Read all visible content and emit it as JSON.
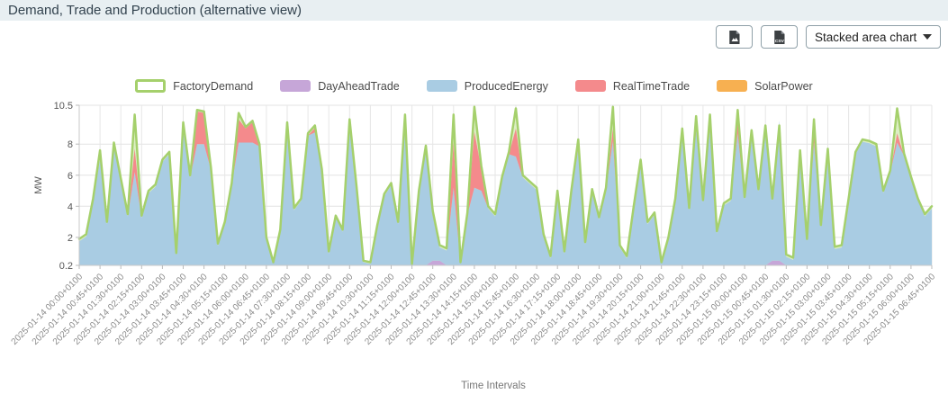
{
  "title": "Demand, Trade and Production (alternative view)",
  "toolbar": {
    "buttons": [
      {
        "name": "export-image-button",
        "icon": "file-image-icon"
      },
      {
        "name": "export-csv-button",
        "icon": "file-csv-icon"
      }
    ],
    "chart_type_value": "Stacked area chart"
  },
  "chart_data": {
    "type": "area",
    "stacked": true,
    "title": "",
    "ylabel": "MW",
    "xlabel": "Time Intervals",
    "ylim": [
      0.2,
      10.5
    ],
    "y_ticks": [
      0.2,
      2,
      4,
      6,
      8,
      10.5
    ],
    "y_tick_labels": [
      "0.2",
      "2",
      "4",
      "6",
      "8",
      "10.5"
    ],
    "grid": true,
    "legend_position": "top",
    "sample_interval_minutes": 15,
    "x_labels": [
      "2025-01-14 00:00+0100",
      "2025-01-14 00:45+0100",
      "2025-01-14 01:30+0100",
      "2025-01-14 02:15+0100",
      "2025-01-14 03:00+0100",
      "2025-01-14 03:45+0100",
      "2025-01-14 04:30+0100",
      "2025-01-14 05:15+0100",
      "2025-01-14 06:00+0100",
      "2025-01-14 06:45+0100",
      "2025-01-14 07:30+0100",
      "2025-01-14 08:15+0100",
      "2025-01-14 09:00+0100",
      "2025-01-14 09:45+0100",
      "2025-01-14 10:30+0100",
      "2025-01-14 11:15+0100",
      "2025-01-14 12:00+0100",
      "2025-01-14 12:45+0100",
      "2025-01-14 13:30+0100",
      "2025-01-14 14:15+0100",
      "2025-01-14 15:00+0100",
      "2025-01-14 15:45+0100",
      "2025-01-14 16:30+0100",
      "2025-01-14 17:15+0100",
      "2025-01-14 18:00+0100",
      "2025-01-14 18:45+0100",
      "2025-01-14 19:30+0100",
      "2025-01-14 20:15+0100",
      "2025-01-14 21:00+0100",
      "2025-01-14 21:45+0100",
      "2025-01-14 22:30+0100",
      "2025-01-14 23:15+0100",
      "2025-01-15 00:00+0100",
      "2025-01-15 00:45+0100",
      "2025-01-15 01:30+0100",
      "2025-01-15 02:15+0100",
      "2025-01-15 03:00+0100",
      "2025-01-15 03:45+0100",
      "2025-01-15 04:30+0100",
      "2025-01-15 05:15+0100",
      "2025-01-15 06:00+0100",
      "2025-01-15 06:45+0100"
    ],
    "series": [
      {
        "name": "FactoryDemand",
        "role": "outline",
        "color": "#a5d06c",
        "fill": "#dceec3",
        "values": [
          1.9,
          2.2,
          4.5,
          7.6,
          3.0,
          8.1,
          5.8,
          3.5,
          9.9,
          3.4,
          5.0,
          5.4,
          7.0,
          7.5,
          1.0,
          9.4,
          6.0,
          10.2,
          10.1,
          6.5,
          1.6,
          3.0,
          5.5,
          10.0,
          9.1,
          9.5,
          8.0,
          2.0,
          0.4,
          2.5,
          9.4,
          3.9,
          4.5,
          8.7,
          9.2,
          6.4,
          1.1,
          3.4,
          2.5,
          9.6,
          5.3,
          0.5,
          0.4,
          2.8,
          4.8,
          5.5,
          3.0,
          9.9,
          0.3,
          5.0,
          7.9,
          3.7,
          1.5,
          1.3,
          9.9,
          0.4,
          3.6,
          10.4,
          6.6,
          4.0,
          3.5,
          5.9,
          7.5,
          10.3,
          6.0,
          5.6,
          5.2,
          2.2,
          0.8,
          5.0,
          1.1,
          5.0,
          8.3,
          1.7,
          5.1,
          3.3,
          5.2,
          10.4,
          1.5,
          0.8,
          4.0,
          7.0,
          3.0,
          3.6,
          0.4,
          2.0,
          4.5,
          9.0,
          3.9,
          9.8,
          4.4,
          9.9,
          2.4,
          4.2,
          4.5,
          10.2,
          4.6,
          8.9,
          5.1,
          9.2,
          4.5,
          9.2,
          0.9,
          0.7,
          7.6,
          1.9,
          9.6,
          2.8,
          7.7,
          1.4,
          1.5,
          4.5,
          7.5,
          8.3,
          8.2,
          8.0,
          5.0,
          6.3,
          10.3,
          7.4,
          5.9,
          4.5,
          3.5,
          4.0
        ]
      },
      {
        "name": "DayAheadTrade",
        "role": "stack",
        "color": "#c6a6d8",
        "values": [
          0,
          0,
          0,
          0,
          0,
          0,
          0,
          0,
          0,
          0,
          0,
          0,
          0,
          0,
          0,
          0,
          0,
          0,
          0,
          0,
          0,
          0,
          0,
          0,
          0,
          0,
          0,
          0,
          0,
          0,
          0,
          0,
          0,
          0,
          0,
          0,
          0,
          0,
          0,
          0,
          0,
          0,
          0,
          0,
          0,
          0,
          0,
          0,
          0,
          0,
          0,
          0.5,
          0.5,
          0,
          0,
          0,
          0,
          0,
          0,
          0,
          0,
          0,
          0,
          0,
          0,
          0,
          0,
          0,
          0,
          0,
          0,
          0,
          0,
          0,
          0,
          0,
          0,
          0,
          0,
          0,
          0,
          0,
          0,
          0,
          0,
          0,
          0,
          0,
          0,
          0,
          0,
          0,
          0,
          0,
          0,
          0,
          0,
          0,
          0,
          0,
          0.5,
          0.5,
          0,
          0,
          0,
          0,
          0,
          0,
          0,
          0,
          0,
          0,
          0,
          0,
          0,
          0,
          0,
          0,
          0,
          0,
          0,
          0,
          0,
          0
        ]
      },
      {
        "name": "ProducedEnergy",
        "role": "stack",
        "color": "#a9cce3",
        "values": [
          1.75,
          2.05,
          4.35,
          7.0,
          2.85,
          7.95,
          5.65,
          3.35,
          6.2,
          3.25,
          4.85,
          5.25,
          6.85,
          7.35,
          0.85,
          8.9,
          5.85,
          8.0,
          8.0,
          6.35,
          1.45,
          2.85,
          5.35,
          8.1,
          8.1,
          8.1,
          7.85,
          1.85,
          0.3,
          2.35,
          9.0,
          3.75,
          4.35,
          8.55,
          8.75,
          6.25,
          0.95,
          3.25,
          2.35,
          9.3,
          5.15,
          0.4,
          0.3,
          2.65,
          4.65,
          5.35,
          2.85,
          9.6,
          0.2,
          4.85,
          7.5,
          3.05,
          0.85,
          1.15,
          5.2,
          0.3,
          3.45,
          5.2,
          5.0,
          3.85,
          3.35,
          5.75,
          7.35,
          7.2,
          5.85,
          5.45,
          5.05,
          2.05,
          0.65,
          4.85,
          0.95,
          4.85,
          7.7,
          1.55,
          4.95,
          3.15,
          5.05,
          8.2,
          1.35,
          0.65,
          3.85,
          6.85,
          2.85,
          3.45,
          0.3,
          1.85,
          4.35,
          8.8,
          3.75,
          8.9,
          4.25,
          9.0,
          2.25,
          4.05,
          4.35,
          8.7,
          4.45,
          8.75,
          4.95,
          9.05,
          3.85,
          9.0,
          0.75,
          0.55,
          7.45,
          1.75,
          8.1,
          2.65,
          7.5,
          1.25,
          1.35,
          4.35,
          7.35,
          8.15,
          8.05,
          7.85,
          4.85,
          6.15,
          8.1,
          7.25,
          5.75,
          4.35,
          3.35,
          3.85
        ]
      },
      {
        "name": "RealTimeTrade",
        "role": "stack",
        "color": "#f48a8c",
        "values": [
          0,
          0,
          0,
          0,
          0,
          0,
          0,
          0,
          1.5,
          0,
          0,
          0,
          0,
          0,
          0,
          0,
          0,
          2.1,
          2.0,
          0,
          0,
          0,
          0,
          1.5,
          0.9,
          1.3,
          0,
          0,
          0,
          0,
          0,
          0,
          0,
          0,
          0.3,
          0,
          0,
          0,
          0,
          0,
          0,
          0,
          0,
          0,
          0,
          0,
          0,
          0,
          0,
          0,
          0,
          0,
          0,
          0,
          2.9,
          0,
          0,
          3.6,
          1.4,
          0,
          0,
          0,
          0,
          1.8,
          0,
          0,
          0,
          0,
          0,
          0,
          0,
          0,
          0.4,
          0,
          0,
          0,
          0,
          0.8,
          0,
          0,
          0,
          0,
          0,
          0,
          0,
          0,
          0,
          0,
          0,
          0.5,
          0,
          0.5,
          0,
          0,
          0,
          0.9,
          0,
          0,
          0,
          0,
          0,
          0,
          0,
          0,
          0,
          0,
          0.7,
          0,
          0,
          0,
          0,
          0,
          0,
          0,
          0,
          0,
          0,
          0,
          0.6,
          0,
          0,
          0,
          0,
          0
        ]
      },
      {
        "name": "SolarPower",
        "role": "stack",
        "color": "#f7b051",
        "values": [
          0,
          0,
          0,
          0,
          0,
          0,
          0,
          0,
          0,
          0,
          0,
          0,
          0,
          0,
          0,
          0,
          0,
          0,
          0,
          0,
          0,
          0,
          0,
          0,
          0,
          0,
          0,
          0,
          0,
          0,
          0,
          0,
          0,
          0,
          0,
          0,
          0,
          0,
          0,
          0,
          0,
          0,
          0,
          0,
          0,
          0,
          0,
          0,
          0,
          0,
          0,
          0,
          0,
          0,
          0,
          0,
          0,
          0,
          0,
          0,
          0,
          0,
          0,
          0,
          0,
          0,
          0,
          0,
          0,
          0,
          0,
          0,
          0,
          0,
          0,
          0,
          0,
          0,
          0,
          0,
          0,
          0,
          0,
          0,
          0,
          0,
          0,
          0,
          0,
          0,
          0,
          0,
          0,
          0,
          0,
          0,
          0,
          0,
          0,
          0,
          0,
          0,
          0,
          0,
          0,
          0,
          0,
          0,
          0,
          0,
          0,
          0,
          0,
          0,
          0,
          0,
          0,
          0,
          0,
          0,
          0,
          0,
          0,
          0
        ]
      }
    ]
  }
}
